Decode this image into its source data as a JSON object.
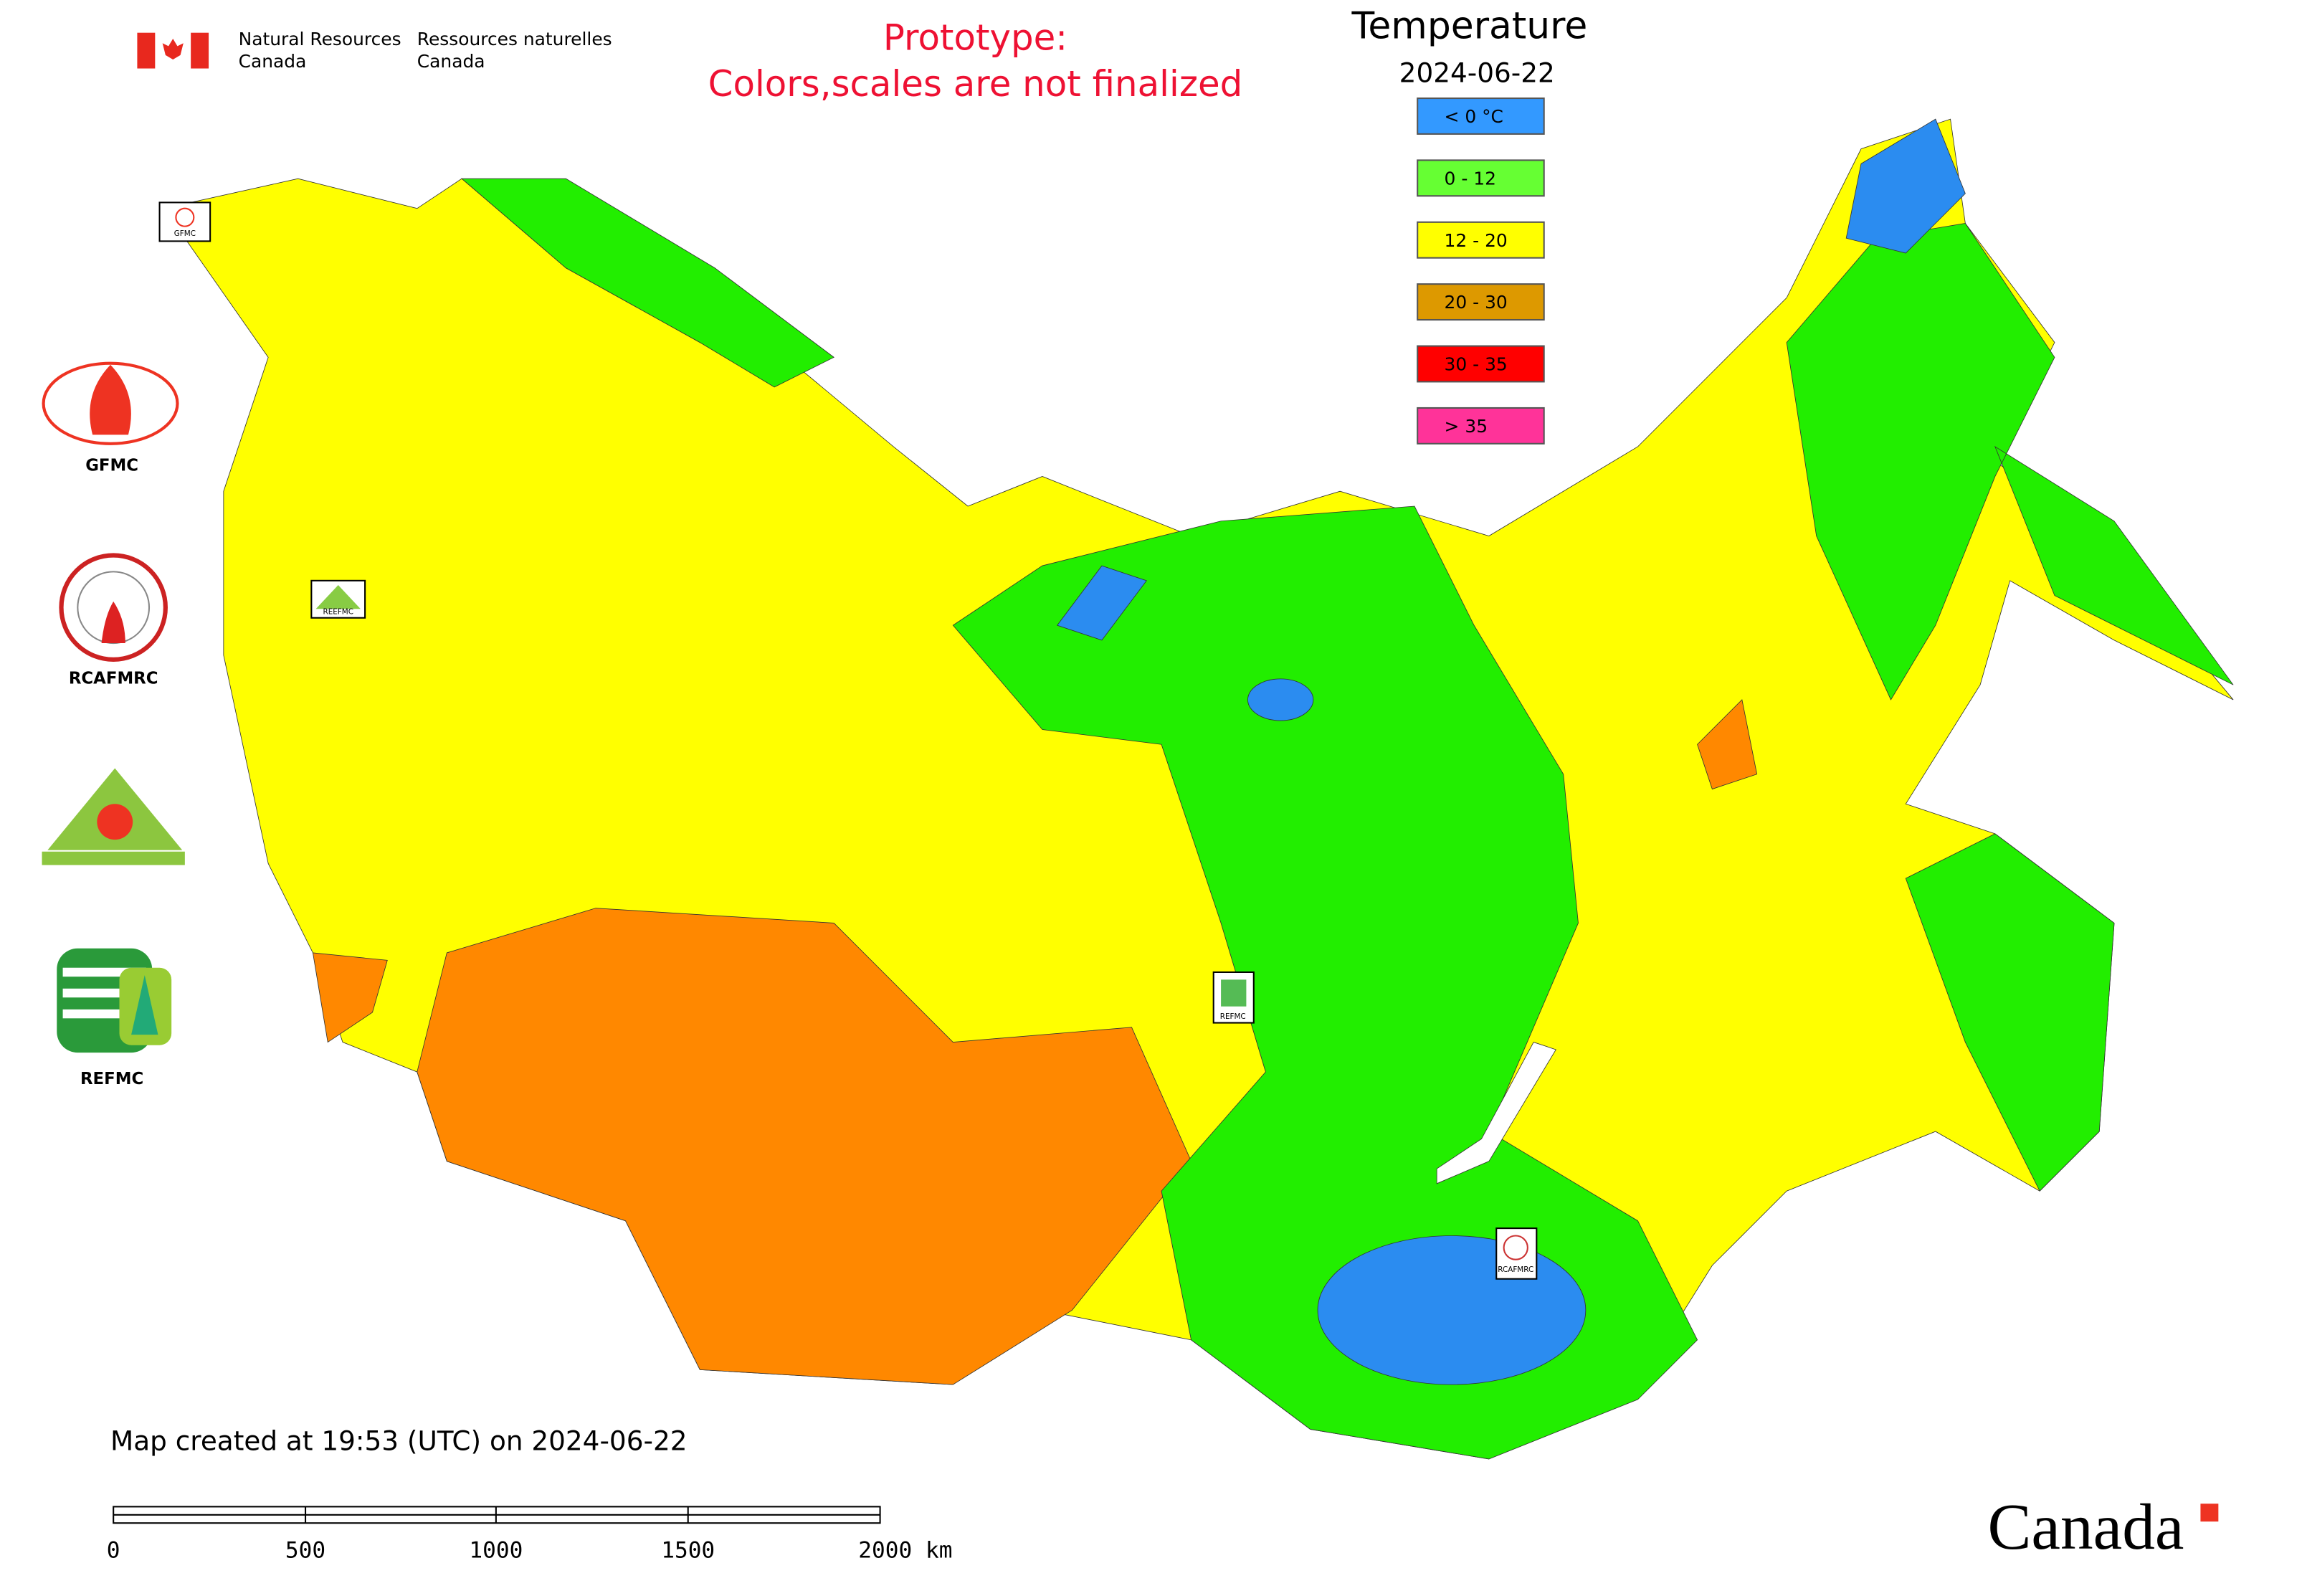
{
  "header": {
    "dept_en": [
      "Natural Resources",
      "Canada"
    ],
    "dept_fr": [
      "Ressources naturelles",
      "Canada"
    ],
    "notice": [
      "Prototype:",
      "Colors,scales are not finalized"
    ]
  },
  "legend": {
    "title": "Temperature",
    "date": "2024-06-22",
    "items": [
      {
        "label": "< 0 °C",
        "color": "#3399ff"
      },
      {
        "label": "0 - 12",
        "color": "#66ff33"
      },
      {
        "label": "12 - 20",
        "color": "#ffff00"
      },
      {
        "label": "20 - 30",
        "color": "#dd9900"
      },
      {
        "label": "30 - 35",
        "color": "#ff0000"
      },
      {
        "label": "> 35",
        "color": "#ff3399"
      }
    ]
  },
  "logos": [
    "GFMC",
    "RCAFMRC",
    "REFMC"
  ],
  "markers": [
    "GFMC",
    "REEFMC",
    "REFMC",
    "RCAFMRC"
  ],
  "footer": "Map created at 19:53 (UTC) on 2024-06-22",
  "scale_bar": [
    "0",
    "500",
    "1000",
    "1500",
    "2000 km"
  ],
  "wordmark": "Canada"
}
